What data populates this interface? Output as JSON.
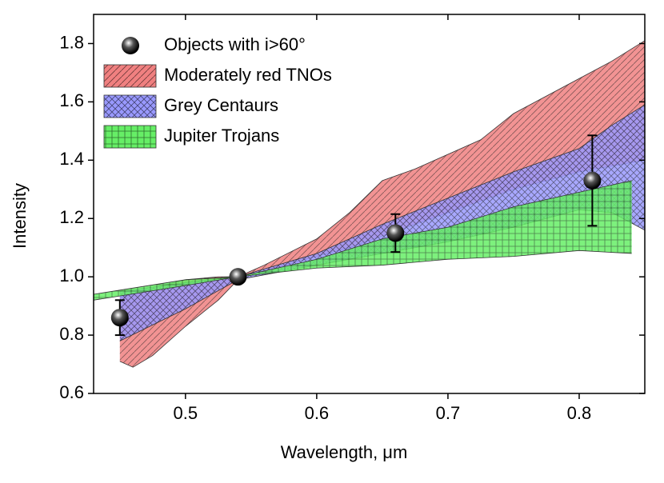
{
  "chart_data": {
    "type": "scatter",
    "xlabel": "Wavelength, μm",
    "ylabel": "Intensity",
    "xlim": [
      0.43,
      0.85
    ],
    "ylim": [
      0.6,
      1.9
    ],
    "xticks": [
      0.5,
      0.6,
      0.7,
      0.8
    ],
    "yticks": [
      0.6,
      0.8,
      {
        "value": 1,
        "label": "1.0"
      },
      1.2,
      1.4,
      1.6,
      1.8
    ],
    "bands": [
      {
        "name": "Moderately red TNOs",
        "color": "#f08080",
        "x": [
          0.45,
          0.46,
          0.475,
          0.5,
          0.525,
          0.54,
          0.56,
          0.6,
          0.625,
          0.65,
          0.675,
          0.7,
          0.725,
          0.75,
          0.775,
          0.8,
          0.825,
          0.85
        ],
        "upper": [
          0.93,
          0.94,
          0.96,
          0.99,
          1.0,
          1.0,
          1.04,
          1.13,
          1.22,
          1.33,
          1.37,
          1.42,
          1.47,
          1.56,
          1.62,
          1.68,
          1.74,
          1.81
        ],
        "lower": [
          0.71,
          0.69,
          0.73,
          0.83,
          0.92,
          0.99,
          1.02,
          1.07,
          1.1,
          1.14,
          1.18,
          1.22,
          1.26,
          1.3,
          1.33,
          1.36,
          1.38,
          1.4
        ]
      },
      {
        "name": "Grey Centaurs",
        "color": "#9999ff",
        "x": [
          0.45,
          0.5,
          0.54,
          0.6,
          0.65,
          0.7,
          0.75,
          0.8,
          0.825,
          0.85
        ],
        "upper": [
          0.95,
          0.98,
          1.0,
          1.08,
          1.18,
          1.27,
          1.36,
          1.44,
          1.52,
          1.59
        ],
        "lower": [
          0.78,
          0.89,
          0.99,
          1.04,
          1.08,
          1.12,
          1.17,
          1.23,
          1.22,
          1.16
        ]
      },
      {
        "name": "Jupiter Trojans",
        "color": "#66ee66",
        "x": [
          0.43,
          0.5,
          0.54,
          0.6,
          0.65,
          0.7,
          0.75,
          0.8,
          0.84
        ],
        "upper": [
          0.94,
          0.99,
          1.0,
          1.06,
          1.13,
          1.17,
          1.24,
          1.29,
          1.33
        ],
        "lower": [
          0.92,
          0.97,
          1.0,
          1.03,
          1.04,
          1.06,
          1.07,
          1.09,
          1.08
        ]
      }
    ],
    "series": [
      {
        "name": "Objects with i>60°",
        "color": "#000000",
        "x": [
          0.45,
          0.54,
          0.66,
          0.81
        ],
        "values": [
          0.86,
          1.0,
          1.15,
          1.33
        ],
        "errors": [
          0.06,
          0,
          0.065,
          0.155
        ]
      }
    ]
  }
}
